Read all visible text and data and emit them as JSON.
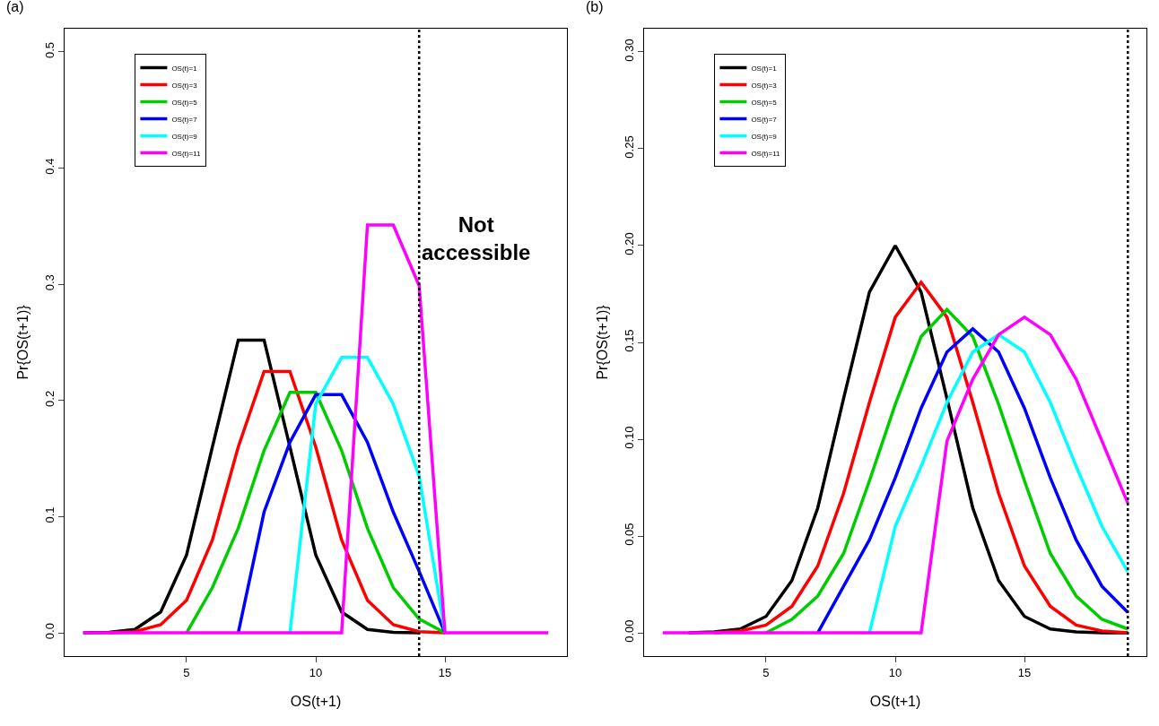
{
  "chart_data": [
    {
      "type": "line",
      "title": "(a)",
      "xlabel": "OS(t+1)",
      "ylabel": "Pr{OS(t+1)}",
      "x": [
        1,
        2,
        3,
        4,
        5,
        6,
        7,
        8,
        9,
        10,
        11,
        12,
        13,
        14,
        15,
        16,
        17,
        18,
        19
      ],
      "xlim": [
        0.28,
        19.72
      ],
      "xticks": [
        5,
        10,
        15
      ],
      "ylim": [
        -0.02,
        0.52
      ],
      "yticks": [
        {
          "value": 0,
          "label": "0.0"
        },
        {
          "value": 0.1,
          "label": "0.1"
        },
        {
          "value": 0.2,
          "label": "0.2"
        },
        {
          "value": 0.3,
          "label": "0.3"
        },
        {
          "value": 0.4,
          "label": "0.4"
        },
        {
          "value": 0.5,
          "label": "0.5"
        }
      ],
      "grid": false,
      "legend": "top left",
      "marker": "none",
      "line_style": "solid",
      "ref_lines": [
        {
          "axis": "x",
          "value": 14,
          "color": "#000000",
          "line_style": "dotted"
        }
      ],
      "annotations": [
        "Not accessible"
      ],
      "series": [
        {
          "name": "OS(t)=1",
          "color": "#000000",
          "values": [
            0,
            0.0005,
            0.003,
            0.018,
            0.067,
            0.16,
            0.252,
            0.252,
            0.16,
            0.067,
            0.018,
            0.003,
            0.0005,
            0,
            null,
            null,
            null,
            null,
            null
          ]
        },
        {
          "name": "OS(t)=3",
          "color": "#ff0000",
          "values": [
            null,
            0,
            0.001,
            0.007,
            0.028,
            0.08,
            0.16,
            0.225,
            0.225,
            0.16,
            0.08,
            0.028,
            0.007,
            0.001,
            0,
            null,
            null,
            null,
            null
          ]
        },
        {
          "name": "OS(t)=5",
          "color": "#00cd00",
          "values": [
            null,
            null,
            null,
            null,
            0,
            0.039,
            0.09,
            0.157,
            0.207,
            0.207,
            0.157,
            0.09,
            0.039,
            0.012,
            0,
            null,
            null,
            null,
            null
          ]
        },
        {
          "name": "OS(t)=7",
          "color": "#0000ff",
          "values": [
            null,
            null,
            null,
            null,
            null,
            null,
            0,
            0.104,
            0.164,
            0.205,
            0.205,
            0.164,
            0.104,
            0.053,
            0,
            null,
            null,
            null,
            null
          ]
        },
        {
          "name": "OS(t)=9",
          "color": "#00ffff",
          "values": [
            null,
            null,
            null,
            null,
            null,
            null,
            null,
            null,
            0,
            0.197,
            0.237,
            0.237,
            0.197,
            0.135,
            0,
            null,
            null,
            null,
            null
          ]
        },
        {
          "name": "OS(t)=11",
          "color": "#ff00ff",
          "values": [
            0,
            0,
            0,
            0,
            0,
            0,
            0,
            0,
            0,
            0,
            0,
            0.351,
            0.351,
            0.299,
            0,
            0,
            0,
            0,
            0
          ]
        }
      ]
    },
    {
      "type": "line",
      "title": "(b)",
      "xlabel": "OS(t+1)",
      "ylabel": "Pr{OS(t+1)}",
      "x": [
        1,
        2,
        3,
        4,
        5,
        6,
        7,
        8,
        9,
        10,
        11,
        12,
        13,
        14,
        15,
        16,
        17,
        18,
        19
      ],
      "xlim": [
        0.28,
        19.72
      ],
      "xticks": [
        5,
        10,
        15
      ],
      "ylim": [
        -0.012,
        0.312
      ],
      "yticks": [
        {
          "value": 0,
          "label": "0.00"
        },
        {
          "value": 0.05,
          "label": "0.05"
        },
        {
          "value": 0.1,
          "label": "0.10"
        },
        {
          "value": 0.15,
          "label": "0.15"
        },
        {
          "value": 0.2,
          "label": "0.20"
        },
        {
          "value": 0.25,
          "label": "0.25"
        },
        {
          "value": 0.3,
          "label": "0.30"
        }
      ],
      "grid": false,
      "legend": "top left",
      "marker": "none",
      "line_style": "solid",
      "ref_lines": [
        {
          "axis": "x",
          "value": 19,
          "color": "#000000",
          "line_style": "dotted"
        }
      ],
      "series": [
        {
          "name": "OS(t)=1",
          "color": "#000000",
          "values": [
            null,
            0,
            0.0005,
            0.002,
            0.0085,
            0.027,
            0.0645,
            0.121,
            0.176,
            0.2,
            0.176,
            0.121,
            0.0645,
            0.027,
            0.0085,
            0.002,
            0.0005,
            0,
            0
          ]
        },
        {
          "name": "OS(t)=3",
          "color": "#ff0000",
          "values": [
            null,
            null,
            0,
            0.001,
            0.004,
            0.0137,
            0.0345,
            0.072,
            0.119,
            0.163,
            0.181,
            0.163,
            0.119,
            0.072,
            0.0345,
            0.0137,
            0.004,
            0.001,
            0
          ]
        },
        {
          "name": "OS(t)=5",
          "color": "#00cd00",
          "values": [
            null,
            null,
            null,
            null,
            0,
            0.007,
            0.019,
            0.041,
            0.0785,
            0.118,
            0.153,
            0.167,
            0.153,
            0.118,
            0.0785,
            0.041,
            0.019,
            0.007,
            0.002
          ]
        },
        {
          "name": "OS(t)=7",
          "color": "#0000ff",
          "values": [
            null,
            null,
            null,
            null,
            null,
            null,
            0,
            0.024,
            0.048,
            0.08,
            0.116,
            0.145,
            0.157,
            0.145,
            0.116,
            0.08,
            0.048,
            0.024,
            0.0106
          ]
        },
        {
          "name": "OS(t)=9",
          "color": "#00ffff",
          "values": [
            null,
            null,
            null,
            null,
            null,
            null,
            null,
            null,
            0,
            0.055,
            0.086,
            0.119,
            0.145,
            0.154,
            0.145,
            0.119,
            0.086,
            0.055,
            0.0316
          ]
        },
        {
          "name": "OS(t)=11",
          "color": "#ff00ff",
          "values": [
            0,
            0,
            0,
            0,
            0,
            0,
            0,
            0,
            0,
            0,
            0,
            0.099,
            0.131,
            0.154,
            0.163,
            0.154,
            0.131,
            0.099,
            0.067
          ]
        }
      ]
    }
  ]
}
